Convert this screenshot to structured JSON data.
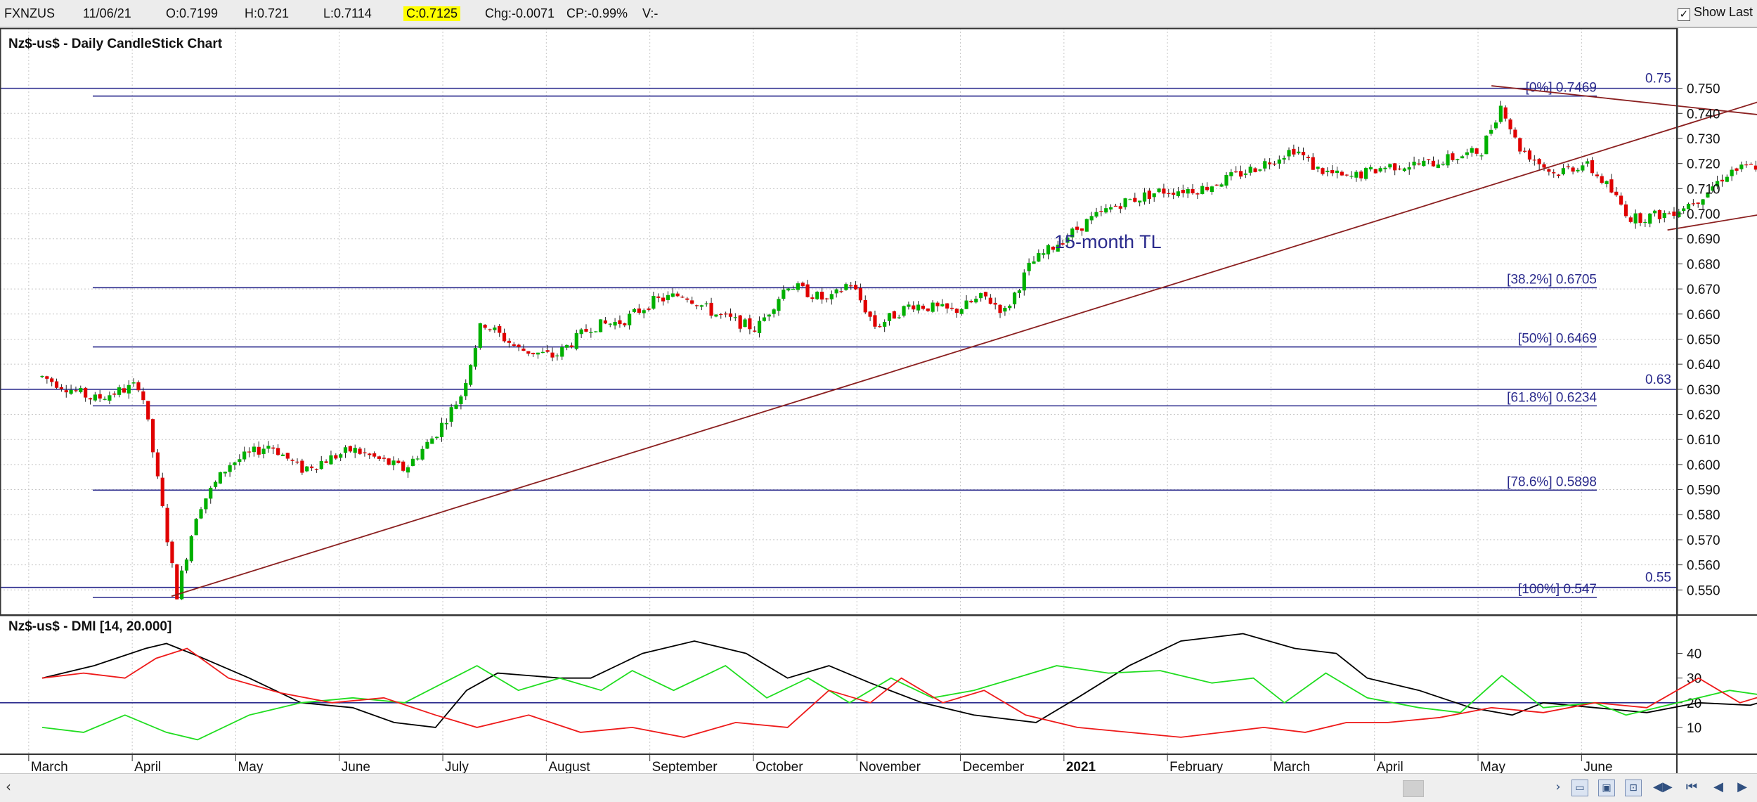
{
  "header": {
    "symbol": "FXNZUS",
    "date": "11/06/21",
    "open": "O:0.7199",
    "high": "H:0.721",
    "low": "L:0.7114",
    "close": "C:0.7125",
    "change": "Chg:-0.0071",
    "change_pct": "CP:-0.99%",
    "volume": "V:-",
    "show_last_label": "Show Last",
    "show_last_checked": "✓"
  },
  "colors": {
    "candle_up": "#00b000",
    "candle_down": "#e00000",
    "level_line": "#2a2a8c",
    "trendline": "#8b2020",
    "di_plus": "#20dd20",
    "di_minus": "#ee1a1a",
    "adx": "#000000",
    "highlight_fill": "#c8cde8"
  },
  "chart_data": [
    {
      "type": "candlestick",
      "title": "Nz$-us$ - Daily CandleStick Chart",
      "y_ticks": [
        "0.750",
        "0.740",
        "0.730",
        "0.720",
        "0.710",
        "0.700",
        "0.690",
        "0.680",
        "0.670",
        "0.660",
        "0.650",
        "0.640",
        "0.630",
        "0.620",
        "0.610",
        "0.600",
        "0.590",
        "0.580",
        "0.570",
        "0.560",
        "0.550"
      ],
      "ylim": [
        0.547,
        0.7555
      ],
      "x_labels": [
        "March",
        "April",
        "May",
        "June",
        "July",
        "August",
        "September",
        "October",
        "November",
        "December",
        "2021",
        "February",
        "March",
        "April",
        "May",
        "June"
      ],
      "x_label_bold": "2021",
      "grid": true,
      "price_path": [
        {
          "m": 0.0,
          "p": 0.635
        },
        {
          "m": 0.5,
          "p": 0.626
        },
        {
          "m": 0.95,
          "p": 0.632
        },
        {
          "m": 1.05,
          "p": 0.61
        },
        {
          "m": 1.3,
          "p": 0.548
        },
        {
          "m": 1.5,
          "p": 0.582
        },
        {
          "m": 1.8,
          "p": 0.6
        },
        {
          "m": 2.2,
          "p": 0.608
        },
        {
          "m": 2.5,
          "p": 0.598
        },
        {
          "m": 3.0,
          "p": 0.606
        },
        {
          "m": 3.5,
          "p": 0.598
        },
        {
          "m": 3.8,
          "p": 0.612
        },
        {
          "m": 4.05,
          "p": 0.628
        },
        {
          "m": 4.25,
          "p": 0.657
        },
        {
          "m": 4.6,
          "p": 0.646
        },
        {
          "m": 4.95,
          "p": 0.643
        },
        {
          "m": 5.3,
          "p": 0.655
        },
        {
          "m": 5.6,
          "p": 0.657
        },
        {
          "m": 5.9,
          "p": 0.665
        },
        {
          "m": 6.2,
          "p": 0.668
        },
        {
          "m": 6.5,
          "p": 0.66
        },
        {
          "m": 6.9,
          "p": 0.654
        },
        {
          "m": 7.2,
          "p": 0.672
        },
        {
          "m": 7.6,
          "p": 0.665
        },
        {
          "m": 7.8,
          "p": 0.673
        },
        {
          "m": 8.05,
          "p": 0.655
        },
        {
          "m": 8.4,
          "p": 0.664
        },
        {
          "m": 8.8,
          "p": 0.661
        },
        {
          "m": 9.1,
          "p": 0.667
        },
        {
          "m": 9.3,
          "p": 0.661
        },
        {
          "m": 9.55,
          "p": 0.68
        },
        {
          "m": 9.8,
          "p": 0.688
        },
        {
          "m": 10.1,
          "p": 0.697
        },
        {
          "m": 10.4,
          "p": 0.704
        },
        {
          "m": 10.8,
          "p": 0.709
        },
        {
          "m": 11.2,
          "p": 0.71
        },
        {
          "m": 11.7,
          "p": 0.718
        },
        {
          "m": 12.1,
          "p": 0.726
        },
        {
          "m": 12.3,
          "p": 0.718
        },
        {
          "m": 12.6,
          "p": 0.714
        },
        {
          "m": 13.0,
          "p": 0.719
        },
        {
          "m": 13.4,
          "p": 0.72
        },
        {
          "m": 13.9,
          "p": 0.725
        },
        {
          "m": 14.1,
          "p": 0.744
        },
        {
          "m": 14.25,
          "p": 0.727
        },
        {
          "m": 14.6,
          "p": 0.716
        },
        {
          "m": 14.9,
          "p": 0.72
        },
        {
          "m": 15.1,
          "p": 0.712
        },
        {
          "m": 15.35,
          "p": 0.698
        },
        {
          "m": 15.7,
          "p": 0.7
        },
        {
          "m": 16.0,
          "p": 0.706
        },
        {
          "m": 16.3,
          "p": 0.717
        },
        {
          "m": 16.8,
          "p": 0.721
        },
        {
          "m": 17.2,
          "p": 0.723
        },
        {
          "m": 17.6,
          "p": 0.718
        },
        {
          "m": 18.0,
          "p": 0.721
        },
        {
          "m": 18.2,
          "p": 0.729
        },
        {
          "m": 18.5,
          "p": 0.718
        },
        {
          "m": 18.65,
          "p": 0.7125
        }
      ],
      "annotations": {
        "fib_levels": [
          {
            "label": "[0%] 0.7469",
            "value": 0.7469
          },
          {
            "label": "[38.2%] 0.6705",
            "value": 0.6705
          },
          {
            "label": "[50%] 0.6469",
            "value": 0.6469
          },
          {
            "label": "[61.8%] 0.6234",
            "value": 0.6234
          },
          {
            "label": "[78.6%] 0.5898",
            "value": 0.5898
          },
          {
            "label": "[100%] 0.547",
            "value": 0.547
          }
        ],
        "horizontal_levels": [
          {
            "label": "0.75",
            "value": 0.75
          },
          {
            "label": "0.63",
            "value": 0.63
          },
          {
            "label": "0.55",
            "value": 0.551
          }
        ],
        "trendline_text": "15-month TL",
        "trendlines": [
          {
            "name": "15-month",
            "start": {
              "m": 1.25,
              "p": 0.5475
            },
            "end": {
              "m": 17.0,
              "p": 0.75
            }
          },
          {
            "name": "upper",
            "start": {
              "m": 14.0,
              "p": 0.751
            },
            "end": {
              "m": 18.7,
              "p": 0.73
            }
          },
          {
            "name": "lower",
            "start": {
              "m": 15.7,
              "p": 0.6935
            },
            "end": {
              "m": 18.9,
              "p": 0.7155
            }
          }
        ]
      }
    },
    {
      "type": "line",
      "title": "Nz$-us$ - DMI [14, 20.000]",
      "y_ticks": [
        "40",
        "30",
        "20",
        "10"
      ],
      "ylim": [
        0,
        45
      ],
      "reference_line": 20,
      "series": [
        {
          "key": "adx",
          "points": [
            [
              0,
              30
            ],
            [
              0.5,
              35
            ],
            [
              1,
              42
            ],
            [
              1.2,
              44
            ],
            [
              1.5,
              39
            ],
            [
              2,
              30
            ],
            [
              2.5,
              20
            ],
            [
              3,
              18
            ],
            [
              3.4,
              12
            ],
            [
              3.8,
              10
            ],
            [
              4.1,
              25
            ],
            [
              4.4,
              32
            ],
            [
              5,
              30
            ],
            [
              5.3,
              30
            ],
            [
              5.8,
              40
            ],
            [
              6.3,
              45
            ],
            [
              6.8,
              40
            ],
            [
              7.2,
              30
            ],
            [
              7.6,
              35
            ],
            [
              8,
              28
            ],
            [
              8.5,
              20
            ],
            [
              9,
              15
            ],
            [
              9.6,
              12
            ],
            [
              10,
              22
            ],
            [
              10.5,
              35
            ],
            [
              11,
              45
            ],
            [
              11.6,
              48
            ],
            [
              12.1,
              42
            ],
            [
              12.5,
              40
            ],
            [
              12.8,
              30
            ],
            [
              13.3,
              25
            ],
            [
              13.8,
              18
            ],
            [
              14.2,
              15
            ],
            [
              14.5,
              20
            ],
            [
              15,
              18
            ],
            [
              15.5,
              16
            ],
            [
              16,
              20
            ],
            [
              16.5,
              19
            ],
            [
              17,
              25
            ],
            [
              17.5,
              20
            ],
            [
              18,
              15
            ],
            [
              18.3,
              13
            ],
            [
              18.7,
              17
            ]
          ]
        },
        {
          "key": "di_plus",
          "points": [
            [
              0,
              10
            ],
            [
              0.4,
              8
            ],
            [
              0.8,
              15
            ],
            [
              1.2,
              8
            ],
            [
              1.5,
              5
            ],
            [
              2,
              15
            ],
            [
              2.5,
              20
            ],
            [
              3,
              22
            ],
            [
              3.5,
              20
            ],
            [
              4.2,
              35
            ],
            [
              4.6,
              25
            ],
            [
              5,
              30
            ],
            [
              5.4,
              25
            ],
            [
              5.7,
              33
            ],
            [
              6.1,
              25
            ],
            [
              6.6,
              35
            ],
            [
              7,
              22
            ],
            [
              7.4,
              30
            ],
            [
              7.8,
              20
            ],
            [
              8.2,
              30
            ],
            [
              8.6,
              22
            ],
            [
              9,
              25
            ],
            [
              9.4,
              30
            ],
            [
              9.8,
              35
            ],
            [
              10.3,
              32
            ],
            [
              10.8,
              33
            ],
            [
              11.3,
              28
            ],
            [
              11.7,
              30
            ],
            [
              12,
              20
            ],
            [
              12.4,
              32
            ],
            [
              12.8,
              22
            ],
            [
              13.3,
              18
            ],
            [
              13.7,
              16
            ],
            [
              14.1,
              31
            ],
            [
              14.5,
              18
            ],
            [
              15,
              20
            ],
            [
              15.3,
              15
            ],
            [
              15.8,
              20
            ],
            [
              16.3,
              25
            ],
            [
              16.8,
              22
            ],
            [
              17.3,
              20
            ],
            [
              17.7,
              23
            ],
            [
              18,
              14
            ],
            [
              18.3,
              20
            ],
            [
              18.5,
              16
            ],
            [
              18.7,
              14
            ]
          ]
        },
        {
          "key": "di_minus",
          "points": [
            [
              0,
              30
            ],
            [
              0.4,
              32
            ],
            [
              0.8,
              30
            ],
            [
              1.1,
              38
            ],
            [
              1.4,
              42
            ],
            [
              1.8,
              30
            ],
            [
              2.3,
              24
            ],
            [
              2.8,
              20
            ],
            [
              3.3,
              22
            ],
            [
              3.8,
              15
            ],
            [
              4.2,
              10
            ],
            [
              4.7,
              15
            ],
            [
              5.2,
              8
            ],
            [
              5.7,
              10
            ],
            [
              6.2,
              6
            ],
            [
              6.7,
              12
            ],
            [
              7.2,
              10
            ],
            [
              7.6,
              25
            ],
            [
              8,
              20
            ],
            [
              8.3,
              30
            ],
            [
              8.7,
              20
            ],
            [
              9.1,
              25
            ],
            [
              9.5,
              15
            ],
            [
              10,
              10
            ],
            [
              10.5,
              8
            ],
            [
              11,
              6
            ],
            [
              11.4,
              8
            ],
            [
              11.8,
              10
            ],
            [
              12.2,
              8
            ],
            [
              12.6,
              12
            ],
            [
              13,
              12
            ],
            [
              13.5,
              14
            ],
            [
              14,
              18
            ],
            [
              14.5,
              16
            ],
            [
              15,
              20
            ],
            [
              15.5,
              18
            ],
            [
              16,
              30
            ],
            [
              16.4,
              20
            ],
            [
              16.8,
              25
            ],
            [
              17.2,
              15
            ],
            [
              17.6,
              22
            ],
            [
              18,
              18
            ],
            [
              18.2,
              25
            ],
            [
              18.5,
              20
            ],
            [
              18.7,
              22
            ]
          ]
        }
      ]
    }
  ]
}
